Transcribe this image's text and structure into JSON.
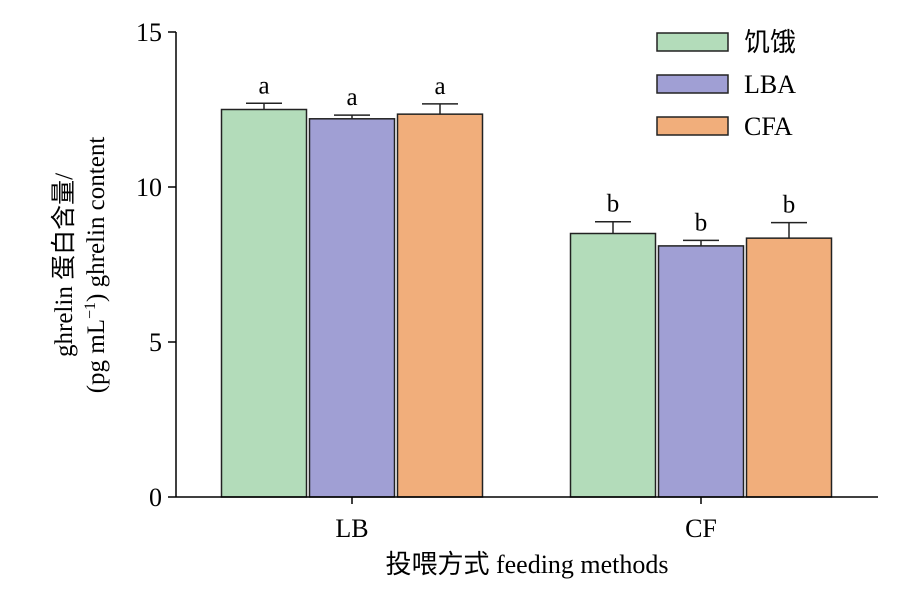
{
  "chart_data": {
    "type": "bar",
    "categories": [
      "LB",
      "CF"
    ],
    "series": [
      {
        "name": "饥饿",
        "color": "#b3dcba",
        "values": [
          12.5,
          8.5
        ],
        "errors": [
          0.2,
          0.38
        ],
        "labels": [
          "a",
          "b"
        ]
      },
      {
        "name": "LBA",
        "color": "#a09fd4",
        "values": [
          12.2,
          8.1
        ],
        "errors": [
          0.12,
          0.18
        ],
        "labels": [
          "a",
          "b"
        ]
      },
      {
        "name": "CFA",
        "color": "#f1ae7b",
        "values": [
          12.35,
          8.35
        ],
        "errors": [
          0.33,
          0.5
        ],
        "labels": [
          "a",
          "b"
        ]
      }
    ],
    "ylim": [
      0,
      15
    ],
    "yticks": [
      "0",
      "5",
      "10",
      "15"
    ],
    "ylabel_line1": "ghrelin 蛋白含量/",
    "ylabel_line2_pre": "(pg mL",
    "ylabel_line2_sup": "−1",
    "ylabel_line2_post": ") ghrelin content",
    "xlabel": "投喂方式 feeding methods",
    "legend_position": "top-right",
    "grid": false
  }
}
